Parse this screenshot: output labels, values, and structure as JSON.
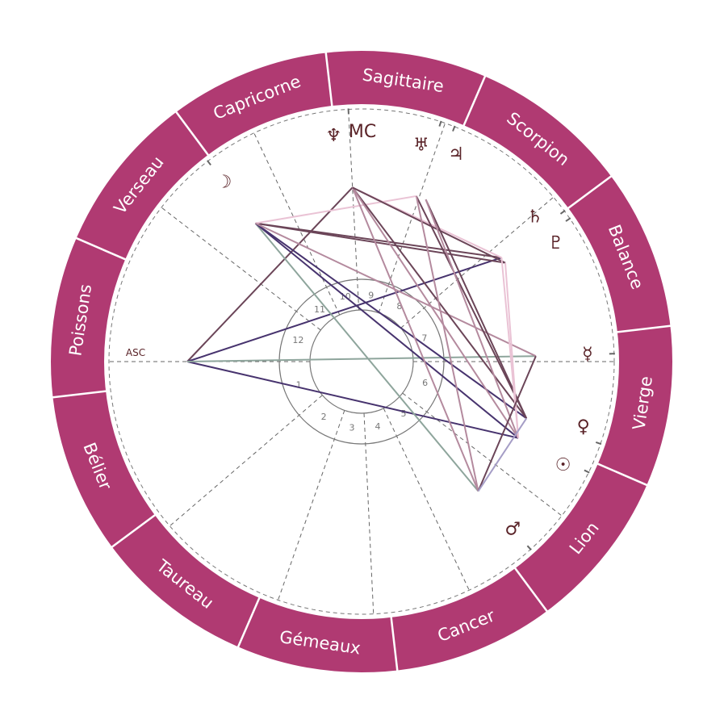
{
  "chart": {
    "colors": {
      "ring": "#b03a72",
      "ring_divider": "#ffffff",
      "glyph": "#5a2328",
      "cusp": "#666666",
      "house_ring": "#777777"
    },
    "signs": [
      "Bélier",
      "Taureau",
      "Gémeaux",
      "Cancer",
      "Lion",
      "Vierge",
      "Balance",
      "Scorpion",
      "Sagittaire",
      "Capricorne",
      "Verseau",
      "Poissons"
    ],
    "zodiac_start_offset_deg": 186.6,
    "angles": {
      "asc": {
        "label": "ASC",
        "longitude": 353.4
      },
      "mc": {
        "label": "MC",
        "longitude": 266.4
      }
    },
    "house_cusps": [
      353.4,
      34,
      64.1,
      86.1,
      108.6,
      135.8,
      173.4,
      214,
      244.1,
      266.4,
      288.6,
      315.8
    ],
    "house_labels": [
      "1",
      "2",
      "3",
      "4",
      "5",
      "6",
      "7",
      "8",
      "9",
      "10",
      "11",
      "12"
    ],
    "planets": [
      {
        "name": "moon",
        "glyph": "☽",
        "longitude": 300.9
      },
      {
        "name": "neptune",
        "glyph": "♆",
        "longitude": 266.4
      },
      {
        "name": "uranus",
        "glyph": "♅",
        "longitude": 245.1
      },
      {
        "name": "jupiter",
        "glyph": "♃",
        "longitude": 241.8
      },
      {
        "name": "saturn",
        "glyph": "♄",
        "longitude": 210.0
      },
      {
        "name": "pluto",
        "glyph": "♇",
        "longitude": 207.9
      },
      {
        "name": "mercury",
        "glyph": "☿",
        "longitude": 175.2
      },
      {
        "name": "venus",
        "glyph": "♀",
        "longitude": 154.4
      },
      {
        "name": "sun",
        "glyph": "☉",
        "longitude": 147.4
      },
      {
        "name": "mars",
        "glyph": "♂",
        "longitude": 125.4
      }
    ],
    "aspect_colors": {
      "dark": "#6b4558",
      "pink": "#eac3d5",
      "mauve": "#b48a9e",
      "purple": "#47336e",
      "sage": "#8ea59c",
      "lavender": "#a59dc6"
    },
    "aspects": [
      [
        "asc",
        "mc",
        "dark"
      ],
      [
        "asc",
        "saturn",
        "purple"
      ],
      [
        "asc",
        "sun",
        "purple"
      ],
      [
        "asc",
        "mercury",
        "sage"
      ],
      [
        "moon",
        "mars",
        "sage"
      ],
      [
        "moon",
        "venus",
        "purple"
      ],
      [
        "moon",
        "sun",
        "purple"
      ],
      [
        "moon",
        "pluto",
        "dark"
      ],
      [
        "moon",
        "saturn",
        "dark"
      ],
      [
        "moon",
        "uranus",
        "pink"
      ],
      [
        "moon",
        "mercury",
        "mauve"
      ],
      [
        "mc",
        "saturn",
        "pink"
      ],
      [
        "mc",
        "venus",
        "dark"
      ],
      [
        "mc",
        "mars",
        "mauve"
      ],
      [
        "mc",
        "sun",
        "mauve"
      ],
      [
        "mc",
        "pluto",
        "dark"
      ],
      [
        "uranus",
        "venus",
        "dark"
      ],
      [
        "uranus",
        "mars",
        "mauve"
      ],
      [
        "jupiter",
        "venus",
        "dark"
      ],
      [
        "jupiter",
        "sun",
        "mauve"
      ],
      [
        "saturn",
        "sun",
        "pink"
      ],
      [
        "pluto",
        "sun",
        "pink"
      ],
      [
        "mercury",
        "mars",
        "dark"
      ],
      [
        "venus",
        "mars",
        "lavender"
      ]
    ]
  }
}
